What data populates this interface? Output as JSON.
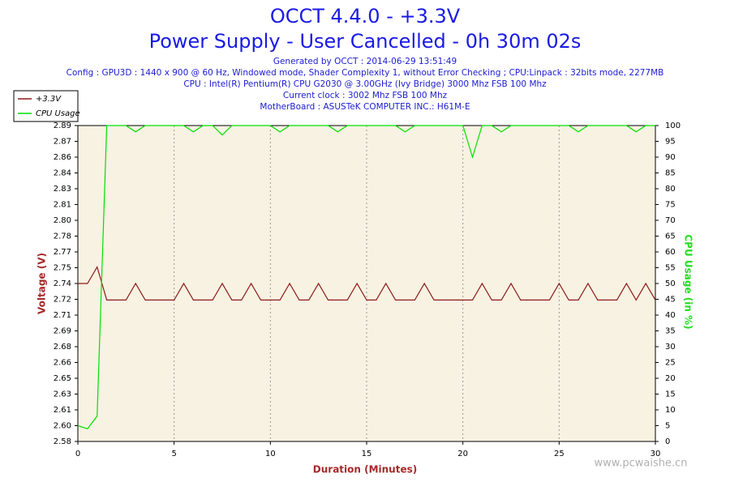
{
  "chart_data": {
    "type": "line",
    "title": "OCCT 4.4.0 - +3.3V",
    "subtitle": "Power Supply - User Cancelled - 0h 30m 02s",
    "info": [
      "Generated by OCCT : 2014-06-29 13:51:49",
      "Config : GPU3D : 1440 x 900 @ 60 Hz, Windowed mode, Shader Complexity 1, without Error Checking ; CPU:Linpack : 32bits mode, 2277MB",
      "CPU : Intel(R) Pentium(R) CPU G2030 @ 3.00GHz (Ivy Bridge) 3000 Mhz FSB 100 Mhz",
      "Current clock : 3002 Mhz FSB 100 Mhz",
      "MotherBoard : ASUSTeK COMPUTER INC.: H61M-E"
    ],
    "xlabel": "Duration (Minutes)",
    "ylabel": "Voltage (V)",
    "y2label": "CPU Usage (in %)",
    "watermark": "www.pcwaishe.cn",
    "x": [
      0,
      0.5,
      1,
      1.5,
      2,
      2.5,
      3,
      3.5,
      4,
      4.5,
      5,
      5.5,
      6,
      6.5,
      7,
      7.5,
      8,
      8.5,
      9,
      9.5,
      10,
      10.5,
      11,
      11.5,
      12,
      12.5,
      13,
      13.5,
      14,
      14.5,
      15,
      15.5,
      16,
      16.5,
      17,
      17.5,
      18,
      18.5,
      19,
      19.5,
      20,
      20.5,
      21,
      21.5,
      22,
      22.5,
      23,
      23.5,
      24,
      24.5,
      25,
      25.5,
      26,
      26.5,
      27,
      27.5,
      28,
      28.5,
      29,
      29.5,
      30
    ],
    "series": [
      {
        "name": "+3.3V",
        "color": "#8b1a1a",
        "values": [
          2.737,
          2.737,
          2.753,
          2.721,
          2.721,
          2.721,
          2.737,
          2.721,
          2.721,
          2.721,
          2.721,
          2.737,
          2.721,
          2.721,
          2.721,
          2.737,
          2.721,
          2.721,
          2.737,
          2.721,
          2.721,
          2.721,
          2.737,
          2.721,
          2.721,
          2.737,
          2.721,
          2.721,
          2.721,
          2.737,
          2.721,
          2.721,
          2.737,
          2.721,
          2.721,
          2.721,
          2.737,
          2.721,
          2.721,
          2.721,
          2.721,
          2.721,
          2.737,
          2.721,
          2.721,
          2.737,
          2.721,
          2.721,
          2.721,
          2.721,
          2.737,
          2.721,
          2.721,
          2.737,
          2.721,
          2.721,
          2.721,
          2.737,
          2.721,
          2.737,
          2.721
        ]
      },
      {
        "name": "CPU Usage",
        "color": "#00e000",
        "axis": "y2",
        "values": [
          5,
          4,
          8,
          100,
          100,
          100,
          98,
          100,
          100,
          100,
          100,
          100,
          98,
          100,
          100,
          97,
          100,
          100,
          100,
          100,
          100,
          98,
          100,
          100,
          100,
          100,
          100,
          98,
          100,
          100,
          100,
          100,
          100,
          100,
          98,
          100,
          100,
          100,
          100,
          100,
          100,
          90,
          100,
          100,
          98,
          100,
          100,
          100,
          100,
          100,
          100,
          100,
          98,
          100,
          100,
          100,
          100,
          100,
          98,
          100,
          100
        ]
      }
    ],
    "xlim": [
      0,
      30
    ],
    "xticks": [
      0,
      5,
      10,
      15,
      20,
      25,
      30
    ],
    "ylim": [
      2.584,
      2.89
    ],
    "yticks": [
      {
        "value": 2.584,
        "label": "2.58"
      },
      {
        "value": 2.5993,
        "label": "2.60"
      },
      {
        "value": 2.6146,
        "label": "2.61"
      },
      {
        "value": 2.6299,
        "label": "2.63"
      },
      {
        "value": 2.6452,
        "label": "2.65"
      },
      {
        "value": 2.6605,
        "label": "2.66"
      },
      {
        "value": 2.6758,
        "label": "2.68"
      },
      {
        "value": 2.6911,
        "label": "2.69"
      },
      {
        "value": 2.7064,
        "label": "2.71"
      },
      {
        "value": 2.7217,
        "label": "2.72"
      },
      {
        "value": 2.737,
        "label": "2.74"
      },
      {
        "value": 2.7523,
        "label": "2.75"
      },
      {
        "value": 2.7676,
        "label": "2.77"
      },
      {
        "value": 2.7829,
        "label": "2.78"
      },
      {
        "value": 2.7982,
        "label": "2.80"
      },
      {
        "value": 2.8135,
        "label": "2.81"
      },
      {
        "value": 2.8288,
        "label": "2.83"
      },
      {
        "value": 2.8441,
        "label": "2.84"
      },
      {
        "value": 2.8594,
        "label": "2.86"
      },
      {
        "value": 2.8747,
        "label": "2.87"
      },
      {
        "value": 2.89,
        "label": "2.89"
      }
    ],
    "y2lim": [
      0,
      100
    ],
    "y2ticks": [
      0,
      5,
      10,
      15,
      20,
      25,
      30,
      35,
      40,
      45,
      50,
      55,
      60,
      65,
      70,
      75,
      80,
      85,
      90,
      95,
      100
    ],
    "grid": true,
    "legend": "top-left"
  }
}
